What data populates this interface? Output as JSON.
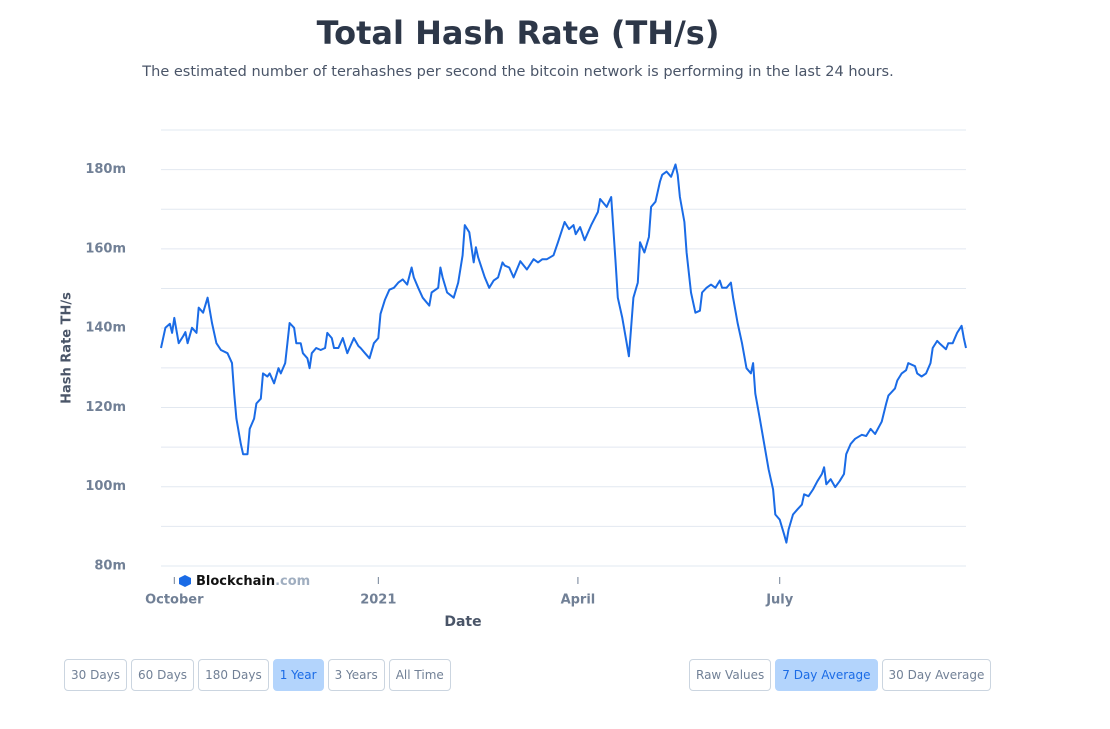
{
  "chart_data": {
    "type": "line",
    "title": "Total Hash Rate (TH/s)",
    "subtitle": "The estimated number of terahashes per second the bitcoin network is performing in the last 24 hours.",
    "x_label": "Date",
    "y_label": "Hash Rate TH/s",
    "watermark": {
      "brand": "Blockchain",
      "suffix": ".com"
    },
    "color": "#1a6be6",
    "grid": true,
    "xlim": [
      -6,
      357
    ],
    "xticks": [
      {
        "value": 0,
        "label": "October"
      },
      {
        "value": 92,
        "label": "2021"
      },
      {
        "value": 182,
        "label": "April"
      },
      {
        "value": 273,
        "label": "July"
      }
    ],
    "ylim": [
      80000000,
      190000000
    ],
    "yticks": [
      {
        "value": 80000000,
        "label": "80m"
      },
      {
        "value": 100000000,
        "label": "100m"
      },
      {
        "value": 120000000,
        "label": "120m"
      },
      {
        "value": 140000000,
        "label": "140m"
      },
      {
        "value": 160000000,
        "label": "160m"
      },
      {
        "value": 180000000,
        "label": "180m"
      }
    ],
    "minor_yticks": [
      90000000,
      110000000,
      130000000,
      150000000,
      170000000,
      190000000
    ],
    "x": [
      -6,
      -4,
      -2,
      -1,
      0,
      2,
      4,
      5,
      6,
      8,
      10,
      11,
      13,
      15,
      17,
      19,
      21,
      24,
      26,
      27,
      28,
      30,
      31,
      33,
      34,
      36,
      37,
      39,
      40,
      42,
      43,
      45,
      47,
      48,
      50,
      51,
      52,
      54,
      55,
      57,
      58,
      60,
      61,
      62,
      64,
      66,
      68,
      69,
      71,
      72,
      74,
      76,
      78,
      79,
      81,
      83,
      84,
      86,
      88,
      90,
      92,
      93,
      95,
      97,
      99,
      101,
      103,
      105,
      107,
      108,
      110,
      112,
      115,
      116,
      119,
      120,
      121,
      123,
      126,
      128,
      130,
      131,
      133,
      135,
      136,
      137,
      140,
      142,
      144,
      146,
      148,
      149,
      151,
      153,
      156,
      159,
      162,
      164,
      166,
      168,
      171,
      173,
      176,
      178,
      180,
      181,
      183,
      185,
      188,
      191,
      192,
      195,
      196,
      197,
      199,
      200,
      202,
      204,
      205,
      206,
      207,
      209,
      210,
      211,
      212,
      214,
      215,
      217,
      219,
      220,
      222,
      224,
      226,
      227,
      228,
      230,
      231,
      233,
      235,
      237,
      238,
      240,
      242,
      244,
      246,
      247,
      249,
      251,
      252,
      254,
      256,
      258,
      260,
      261,
      262,
      264,
      266,
      268,
      270,
      271,
      273,
      275,
      276,
      277,
      279,
      281,
      283,
      284,
      286,
      288,
      290,
      292,
      293,
      294,
      296,
      298,
      300,
      302,
      303,
      305,
      307,
      310,
      312,
      314,
      316,
      319,
      321,
      322,
      325,
      326,
      328,
      330,
      331,
      334,
      335,
      337,
      339,
      341,
      342,
      344,
      345,
      348,
      349,
      351,
      353,
      355,
      356,
      357
    ],
    "values": [
      135000000,
      140100000,
      141100000,
      138800000,
      142600000,
      136200000,
      138000000,
      139000000,
      136200000,
      140100000,
      138800000,
      145200000,
      143900000,
      147700000,
      141300000,
      136200000,
      134500000,
      133700000,
      131200000,
      123500000,
      117200000,
      110800000,
      108200000,
      108200000,
      114600000,
      117200000,
      121000000,
      122200000,
      128600000,
      127800000,
      128600000,
      126100000,
      129900000,
      128600000,
      131200000,
      136200000,
      141300000,
      140100000,
      136200000,
      136200000,
      133700000,
      132400000,
      129900000,
      133700000,
      135000000,
      134500000,
      135000000,
      138800000,
      137500000,
      135000000,
      135000000,
      137500000,
      133700000,
      135000000,
      137500000,
      135500000,
      135000000,
      133700000,
      132400000,
      136200000,
      137500000,
      143600000,
      147200000,
      149700000,
      150200000,
      151500000,
      152300000,
      151000000,
      155300000,
      152800000,
      150200000,
      147700000,
      145700000,
      149000000,
      150200000,
      155300000,
      152800000,
      149000000,
      147700000,
      151500000,
      158400000,
      166000000,
      164200000,
      156600000,
      160400000,
      157900000,
      152800000,
      150200000,
      152000000,
      152800000,
      156600000,
      155800000,
      155300000,
      152800000,
      156900000,
      154800000,
      157400000,
      156600000,
      157400000,
      157400000,
      158400000,
      161700000,
      166800000,
      165000000,
      166000000,
      163700000,
      165500000,
      162200000,
      166000000,
      169300000,
      172600000,
      170600000,
      171900000,
      173100000,
      156600000,
      147700000,
      142600000,
      136200000,
      132900000,
      140100000,
      147700000,
      151500000,
      161700000,
      160400000,
      159100000,
      163000000,
      170600000,
      171900000,
      177000000,
      178700000,
      179500000,
      178200000,
      181300000,
      178700000,
      173100000,
      166800000,
      159100000,
      149000000,
      143900000,
      144400000,
      149000000,
      150200000,
      151000000,
      150200000,
      152000000,
      150200000,
      150200000,
      151500000,
      147700000,
      141300000,
      136200000,
      129900000,
      128600000,
      131200000,
      123500000,
      117200000,
      110800000,
      104400000,
      99300000,
      93000000,
      91700000,
      87900000,
      85900000,
      89200000,
      93000000,
      94300000,
      95500000,
      98100000,
      97600000,
      99300000,
      101400000,
      103200000,
      104900000,
      100600000,
      101900000,
      99900000,
      101400000,
      103200000,
      108200000,
      110800000,
      112100000,
      113100000,
      112800000,
      114600000,
      113300000,
      116400000,
      121000000,
      123000000,
      124800000,
      126800000,
      128600000,
      129400000,
      131200000,
      130400000,
      128600000,
      127800000,
      128600000,
      131200000,
      135000000,
      136800000,
      136200000,
      134700000,
      136200000,
      136200000,
      138800000,
      140600000,
      137500000,
      135000000
    ]
  },
  "controls": {
    "time_range": [
      {
        "label": "30 Days",
        "selected": false
      },
      {
        "label": "60 Days",
        "selected": false
      },
      {
        "label": "180 Days",
        "selected": false
      },
      {
        "label": "1 Year",
        "selected": true
      },
      {
        "label": "3 Years",
        "selected": false
      },
      {
        "label": "All Time",
        "selected": false
      }
    ],
    "averaging": [
      {
        "label": "Raw Values",
        "selected": false
      },
      {
        "label": "7 Day Average",
        "selected": true
      },
      {
        "label": "30 Day Average",
        "selected": false
      }
    ]
  }
}
